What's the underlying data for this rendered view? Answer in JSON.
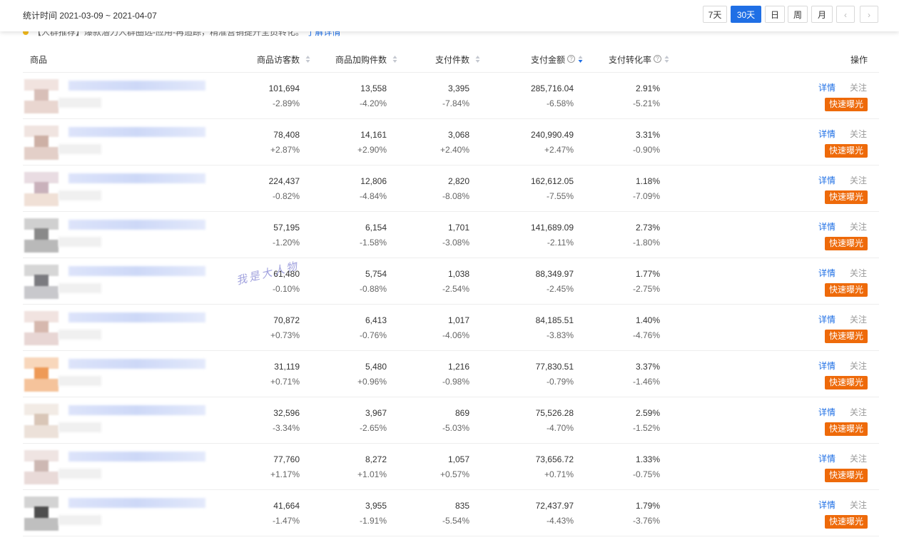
{
  "header": {
    "date_range": "统计时间 2021-03-09 ~ 2021-04-07",
    "periods": [
      "7天",
      "30天",
      "日",
      "周",
      "月"
    ],
    "active_period": 1
  },
  "notice": {
    "text": "【人群推荐】爆款潜力人群圈选-应用-再追踪，精准营销提升全员转化。",
    "link": "了解详情"
  },
  "table": {
    "columns": [
      "商品",
      "商品访客数",
      "商品加购件数",
      "支付件数",
      "支付金额",
      "支付转化率",
      "操作"
    ],
    "rows": [
      [
        "101,694",
        "-2.89%",
        "13,558",
        "-4.20%",
        "3,395",
        "-7.84%",
        "285,716.04",
        "-6.58%",
        "2.91%",
        "-5.21%"
      ],
      [
        "78,408",
        "+2.87%",
        "14,161",
        "+2.90%",
        "3,068",
        "+2.40%",
        "240,990.49",
        "+2.47%",
        "3.31%",
        "-0.90%"
      ],
      [
        "224,437",
        "-0.82%",
        "12,806",
        "-4.84%",
        "2,820",
        "-8.08%",
        "162,612.05",
        "-7.55%",
        "1.18%",
        "-7.09%"
      ],
      [
        "57,195",
        "-1.20%",
        "6,154",
        "-1.58%",
        "1,701",
        "-3.08%",
        "141,689.09",
        "-2.11%",
        "2.73%",
        "-1.80%"
      ],
      [
        "61,480",
        "-0.10%",
        "5,754",
        "-0.88%",
        "1,038",
        "-2.54%",
        "88,349.97",
        "-2.45%",
        "1.77%",
        "-2.75%"
      ],
      [
        "70,872",
        "+0.73%",
        "6,413",
        "-0.76%",
        "1,017",
        "-4.06%",
        "84,185.51",
        "-3.83%",
        "1.40%",
        "-4.76%"
      ],
      [
        "31,119",
        "+0.71%",
        "5,480",
        "+0.96%",
        "1,216",
        "-0.98%",
        "77,830.51",
        "-0.79%",
        "3.37%",
        "-1.46%"
      ],
      [
        "32,596",
        "-3.34%",
        "3,967",
        "-2.65%",
        "869",
        "-5.03%",
        "75,526.28",
        "-4.70%",
        "2.59%",
        "-1.52%"
      ],
      [
        "77,760",
        "+1.17%",
        "8,272",
        "+1.01%",
        "1,057",
        "+0.57%",
        "73,656.72",
        "+0.71%",
        "1.33%",
        "-0.75%"
      ],
      [
        "41,664",
        "-1.47%",
        "3,955",
        "-1.91%",
        "835",
        "-5.54%",
        "72,437.97",
        "-4.43%",
        "1.79%",
        "-3.76%"
      ]
    ]
  },
  "actions": [
    "详情",
    "关注",
    "快速曝光"
  ],
  "watermark": "我是大人物"
}
